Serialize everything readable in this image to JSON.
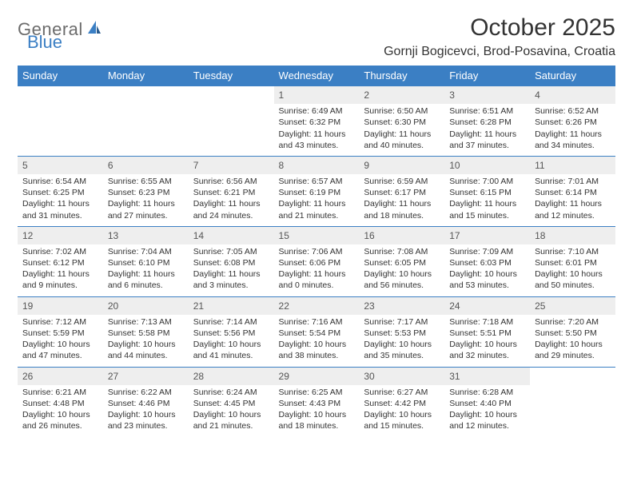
{
  "logo": {
    "word1": "General",
    "word2": "Blue",
    "color_gray": "#6c6c6c",
    "color_blue": "#3b7fc4"
  },
  "title": "October 2025",
  "location": "Gornji Bogicevci, Brod-Posavina, Croatia",
  "colors": {
    "header_bg": "#3b7fc4",
    "header_text": "#ffffff",
    "daynum_bg": "#eeeeee",
    "border": "#3b7fc4",
    "text": "#333333"
  },
  "font": {
    "body_size": 10.5,
    "daynum_size": 12,
    "weekday_size": 13,
    "title_size": 30,
    "location_size": 16
  },
  "weekdays": [
    "Sunday",
    "Monday",
    "Tuesday",
    "Wednesday",
    "Thursday",
    "Friday",
    "Saturday"
  ],
  "weeks": [
    [
      null,
      null,
      null,
      {
        "n": "1",
        "sr": "Sunrise: 6:49 AM",
        "ss": "Sunset: 6:32 PM",
        "d1": "Daylight: 11 hours",
        "d2": "and 43 minutes."
      },
      {
        "n": "2",
        "sr": "Sunrise: 6:50 AM",
        "ss": "Sunset: 6:30 PM",
        "d1": "Daylight: 11 hours",
        "d2": "and 40 minutes."
      },
      {
        "n": "3",
        "sr": "Sunrise: 6:51 AM",
        "ss": "Sunset: 6:28 PM",
        "d1": "Daylight: 11 hours",
        "d2": "and 37 minutes."
      },
      {
        "n": "4",
        "sr": "Sunrise: 6:52 AM",
        "ss": "Sunset: 6:26 PM",
        "d1": "Daylight: 11 hours",
        "d2": "and 34 minutes."
      }
    ],
    [
      {
        "n": "5",
        "sr": "Sunrise: 6:54 AM",
        "ss": "Sunset: 6:25 PM",
        "d1": "Daylight: 11 hours",
        "d2": "and 31 minutes."
      },
      {
        "n": "6",
        "sr": "Sunrise: 6:55 AM",
        "ss": "Sunset: 6:23 PM",
        "d1": "Daylight: 11 hours",
        "d2": "and 27 minutes."
      },
      {
        "n": "7",
        "sr": "Sunrise: 6:56 AM",
        "ss": "Sunset: 6:21 PM",
        "d1": "Daylight: 11 hours",
        "d2": "and 24 minutes."
      },
      {
        "n": "8",
        "sr": "Sunrise: 6:57 AM",
        "ss": "Sunset: 6:19 PM",
        "d1": "Daylight: 11 hours",
        "d2": "and 21 minutes."
      },
      {
        "n": "9",
        "sr": "Sunrise: 6:59 AM",
        "ss": "Sunset: 6:17 PM",
        "d1": "Daylight: 11 hours",
        "d2": "and 18 minutes."
      },
      {
        "n": "10",
        "sr": "Sunrise: 7:00 AM",
        "ss": "Sunset: 6:15 PM",
        "d1": "Daylight: 11 hours",
        "d2": "and 15 minutes."
      },
      {
        "n": "11",
        "sr": "Sunrise: 7:01 AM",
        "ss": "Sunset: 6:14 PM",
        "d1": "Daylight: 11 hours",
        "d2": "and 12 minutes."
      }
    ],
    [
      {
        "n": "12",
        "sr": "Sunrise: 7:02 AM",
        "ss": "Sunset: 6:12 PM",
        "d1": "Daylight: 11 hours",
        "d2": "and 9 minutes."
      },
      {
        "n": "13",
        "sr": "Sunrise: 7:04 AM",
        "ss": "Sunset: 6:10 PM",
        "d1": "Daylight: 11 hours",
        "d2": "and 6 minutes."
      },
      {
        "n": "14",
        "sr": "Sunrise: 7:05 AM",
        "ss": "Sunset: 6:08 PM",
        "d1": "Daylight: 11 hours",
        "d2": "and 3 minutes."
      },
      {
        "n": "15",
        "sr": "Sunrise: 7:06 AM",
        "ss": "Sunset: 6:06 PM",
        "d1": "Daylight: 11 hours",
        "d2": "and 0 minutes."
      },
      {
        "n": "16",
        "sr": "Sunrise: 7:08 AM",
        "ss": "Sunset: 6:05 PM",
        "d1": "Daylight: 10 hours",
        "d2": "and 56 minutes."
      },
      {
        "n": "17",
        "sr": "Sunrise: 7:09 AM",
        "ss": "Sunset: 6:03 PM",
        "d1": "Daylight: 10 hours",
        "d2": "and 53 minutes."
      },
      {
        "n": "18",
        "sr": "Sunrise: 7:10 AM",
        "ss": "Sunset: 6:01 PM",
        "d1": "Daylight: 10 hours",
        "d2": "and 50 minutes."
      }
    ],
    [
      {
        "n": "19",
        "sr": "Sunrise: 7:12 AM",
        "ss": "Sunset: 5:59 PM",
        "d1": "Daylight: 10 hours",
        "d2": "and 47 minutes."
      },
      {
        "n": "20",
        "sr": "Sunrise: 7:13 AM",
        "ss": "Sunset: 5:58 PM",
        "d1": "Daylight: 10 hours",
        "d2": "and 44 minutes."
      },
      {
        "n": "21",
        "sr": "Sunrise: 7:14 AM",
        "ss": "Sunset: 5:56 PM",
        "d1": "Daylight: 10 hours",
        "d2": "and 41 minutes."
      },
      {
        "n": "22",
        "sr": "Sunrise: 7:16 AM",
        "ss": "Sunset: 5:54 PM",
        "d1": "Daylight: 10 hours",
        "d2": "and 38 minutes."
      },
      {
        "n": "23",
        "sr": "Sunrise: 7:17 AM",
        "ss": "Sunset: 5:53 PM",
        "d1": "Daylight: 10 hours",
        "d2": "and 35 minutes."
      },
      {
        "n": "24",
        "sr": "Sunrise: 7:18 AM",
        "ss": "Sunset: 5:51 PM",
        "d1": "Daylight: 10 hours",
        "d2": "and 32 minutes."
      },
      {
        "n": "25",
        "sr": "Sunrise: 7:20 AM",
        "ss": "Sunset: 5:50 PM",
        "d1": "Daylight: 10 hours",
        "d2": "and 29 minutes."
      }
    ],
    [
      {
        "n": "26",
        "sr": "Sunrise: 6:21 AM",
        "ss": "Sunset: 4:48 PM",
        "d1": "Daylight: 10 hours",
        "d2": "and 26 minutes."
      },
      {
        "n": "27",
        "sr": "Sunrise: 6:22 AM",
        "ss": "Sunset: 4:46 PM",
        "d1": "Daylight: 10 hours",
        "d2": "and 23 minutes."
      },
      {
        "n": "28",
        "sr": "Sunrise: 6:24 AM",
        "ss": "Sunset: 4:45 PM",
        "d1": "Daylight: 10 hours",
        "d2": "and 21 minutes."
      },
      {
        "n": "29",
        "sr": "Sunrise: 6:25 AM",
        "ss": "Sunset: 4:43 PM",
        "d1": "Daylight: 10 hours",
        "d2": "and 18 minutes."
      },
      {
        "n": "30",
        "sr": "Sunrise: 6:27 AM",
        "ss": "Sunset: 4:42 PM",
        "d1": "Daylight: 10 hours",
        "d2": "and 15 minutes."
      },
      {
        "n": "31",
        "sr": "Sunrise: 6:28 AM",
        "ss": "Sunset: 4:40 PM",
        "d1": "Daylight: 10 hours",
        "d2": "and 12 minutes."
      },
      null
    ]
  ]
}
